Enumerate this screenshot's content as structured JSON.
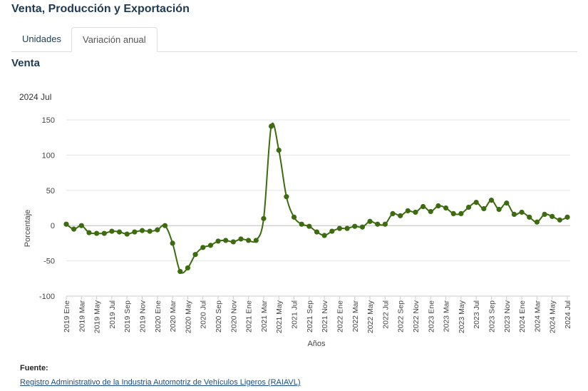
{
  "page": {
    "title": "Venta, Producción y Exportación",
    "tabs": [
      "Unidades",
      "Variación anual"
    ],
    "active_tab": "Variación anual",
    "section_title": "Venta"
  },
  "chart_data": {
    "type": "line",
    "title": "2024 Jul",
    "xlabel": "Años",
    "ylabel": "Porcentaje",
    "ylim": [
      -100,
      150
    ],
    "yticks": [
      150,
      100,
      50,
      0,
      -50,
      -100
    ],
    "x_tick_labels": [
      "2019 Ene",
      "2019 Mar",
      "2019 May",
      "2019 Jul",
      "2019 Sep",
      "2019 Nov",
      "2020 Ene",
      "2020 Mar",
      "2020 May",
      "2020 Jul",
      "2020 Sep",
      "2020 Nov",
      "2021 Ene",
      "2021 Mar",
      "2021 May",
      "2021 Jul",
      "2021 Sep",
      "2021 Nov",
      "2022 Ene",
      "2022 Mar",
      "2022 May",
      "2022 Jul",
      "2022 Sep",
      "2022 Nov",
      "2023 Ene",
      "2023 Mar",
      "2023 May",
      "2023 Jul",
      "2023 Sep",
      "2023 Nov",
      "2024 Ene",
      "2024 Mar",
      "2024 May",
      "2024 Jul"
    ],
    "series": [
      {
        "name": "Venta",
        "color": "#3d6b0f",
        "values": [
          2,
          -5,
          0,
          -10,
          -11,
          -11,
          -8,
          -9,
          -12,
          -9,
          -7,
          -8,
          -6,
          0,
          -25,
          -65,
          -60,
          -41,
          -31,
          -28,
          -22,
          -21,
          -23,
          -19,
          -21,
          -21,
          10,
          141,
          107,
          41,
          12,
          2,
          -1,
          -9,
          -14,
          -8,
          -4,
          -4,
          -1,
          -2,
          6,
          2,
          2,
          17,
          14,
          21,
          19,
          27,
          20,
          28,
          25,
          17,
          17,
          26,
          33,
          24,
          36,
          23,
          32,
          16,
          19,
          12,
          5,
          16,
          13,
          8,
          12
        ]
      }
    ]
  },
  "footer": {
    "source_label": "Fuente:",
    "source_link": "Registro Administrativo de la Industria Automotriz de Vehículos Ligeros (RAIAVL)"
  }
}
